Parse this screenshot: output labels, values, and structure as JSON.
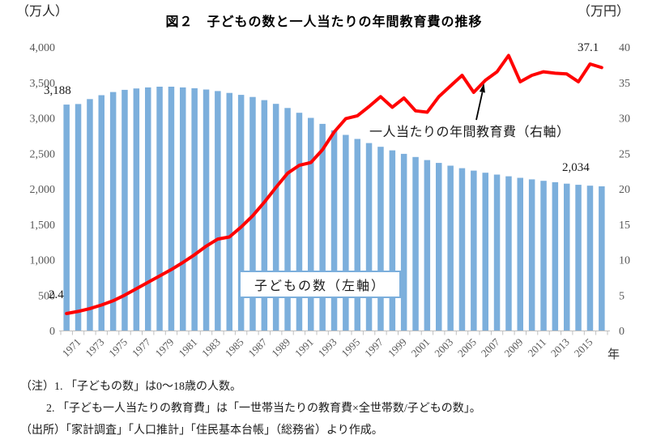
{
  "header": {
    "left_unit": "（万人）",
    "title": "図２　子どもの数と一人当たりの年間教育費の推移",
    "right_unit": "（万円）"
  },
  "chart_data": {
    "type": "bar+line combo",
    "x_years": [
      1970,
      1971,
      1972,
      1973,
      1974,
      1975,
      1976,
      1977,
      1978,
      1979,
      1980,
      1981,
      1982,
      1983,
      1984,
      1985,
      1986,
      1987,
      1988,
      1989,
      1990,
      1991,
      1992,
      1993,
      1994,
      1995,
      1996,
      1997,
      1998,
      1999,
      2000,
      2001,
      2002,
      2003,
      2004,
      2005,
      2006,
      2007,
      2008,
      2009,
      2010,
      2011,
      2012,
      2013,
      2014,
      2015,
      2016
    ],
    "series": [
      {
        "name": "子どもの数（左軸）",
        "type": "bar",
        "axis": "left",
        "color": "#7CAFDC",
        "values": [
          3188,
          3195,
          3265,
          3320,
          3365,
          3395,
          3415,
          3430,
          3440,
          3440,
          3430,
          3418,
          3400,
          3378,
          3352,
          3325,
          3295,
          3250,
          3198,
          3140,
          3072,
          3000,
          2915,
          2825,
          2760,
          2703,
          2645,
          2592,
          2542,
          2492,
          2448,
          2405,
          2365,
          2326,
          2290,
          2256,
          2226,
          2200,
          2176,
          2154,
          2133,
          2112,
          2092,
          2072,
          2056,
          2044,
          2034
        ]
      },
      {
        "name": "一人当たりの年間教育費（右軸）",
        "type": "line",
        "axis": "right",
        "color": "#FF0000",
        "values": [
          2.4,
          2.7,
          3.1,
          3.6,
          4.2,
          5.0,
          5.9,
          6.8,
          7.7,
          8.6,
          9.6,
          10.7,
          11.9,
          12.9,
          13.2,
          14.6,
          16.2,
          18.1,
          20.2,
          22.2,
          23.3,
          23.7,
          25.5,
          28.0,
          29.9,
          30.3,
          31.6,
          33.0,
          31.5,
          32.8,
          31.0,
          30.8,
          33.0,
          34.5,
          36.0,
          33.6,
          35.3,
          36.5,
          38.8,
          35.1,
          36.0,
          36.5,
          36.3,
          36.2,
          35.1,
          37.6,
          37.1
        ]
      }
    ],
    "left_axis": {
      "min": 0,
      "max": 4000,
      "step": 500,
      "unit": "万人"
    },
    "right_axis": {
      "min": 0,
      "max": 40,
      "step": 5,
      "unit": "万円"
    },
    "x_tick_label_years": [
      1971,
      1973,
      1975,
      1977,
      1979,
      1981,
      1983,
      1985,
      1987,
      1989,
      1991,
      1993,
      1995,
      1997,
      1999,
      2001,
      2003,
      2005,
      2007,
      2009,
      2011,
      2013,
      2015
    ],
    "x_unit": "年",
    "grid": "off",
    "legend": "in-plot annotations",
    "annotations": {
      "bar_first": "3,188",
      "line_first": "2.4",
      "line_last": "37.1",
      "bar_last": "2,034",
      "bar_series_label": "子どもの数（左軸）",
      "line_series_label": "一人当たりの年間教育費（右軸）"
    },
    "colors": {
      "bar": "#7CAFDC",
      "line": "#FF0000",
      "axis": "#BFBFBF",
      "tick_text": "#595959"
    }
  },
  "notes": [
    "（注）1. 「子どもの数」は0～18歳の人数。",
    "2. 「子ども一人当たりの教育費」は「一世帯当たりの教育費×全世帯数/子どもの数」。",
    "（出所）「家計調査」「人口推計」「住民基本台帳」（総務省）より作成。"
  ]
}
